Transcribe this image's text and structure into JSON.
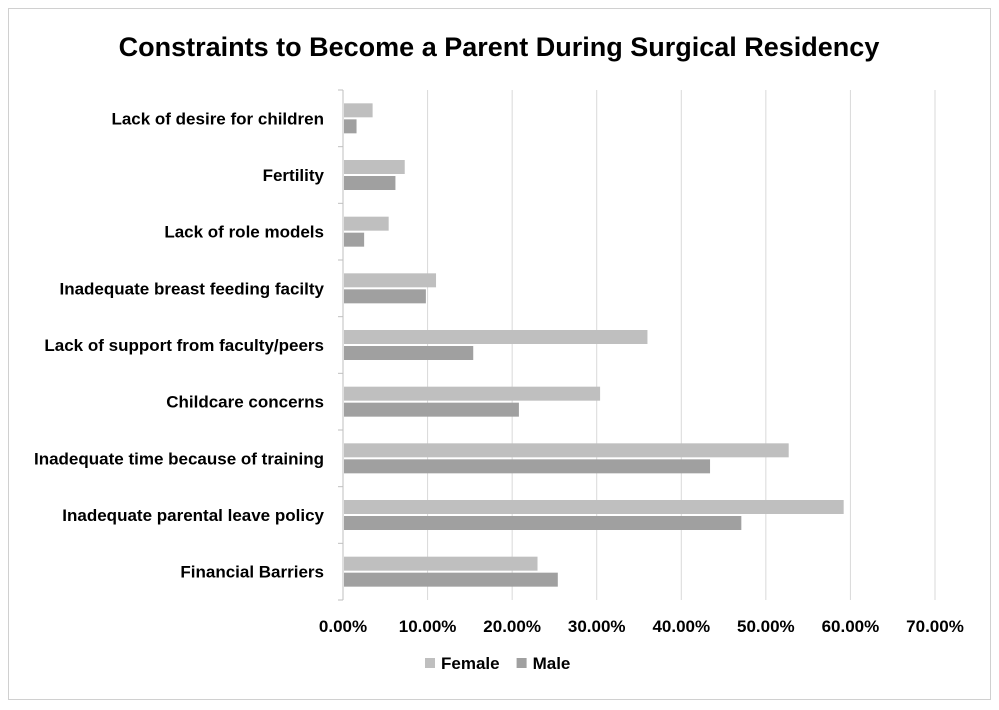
{
  "chart_data": {
    "type": "bar",
    "orientation": "horizontal",
    "title": "Constraints to Become a Parent During Surgical Residency",
    "xlabel": "",
    "ylabel": "",
    "categories": [
      "Lack of desire for children",
      "Fertility",
      "Lack of role models",
      "Inadequate breast feeding facilty",
      "Lack of support from faculty/peers",
      "Childcare concerns",
      "Inadequate time because of training",
      "Inadequate parental leave policy",
      "Financial Barriers"
    ],
    "series": [
      {
        "name": "Female",
        "color": "#bfbfbf",
        "values": [
          3.5,
          7.3,
          5.4,
          11.0,
          36.0,
          30.4,
          52.7,
          59.2,
          23.0
        ]
      },
      {
        "name": "Male",
        "color": "#a0a0a0",
        "values": [
          1.6,
          6.2,
          2.5,
          9.8,
          15.4,
          20.8,
          43.4,
          47.1,
          25.4
        ]
      }
    ],
    "xlim": [
      0,
      70
    ],
    "xticks": [
      0,
      10,
      20,
      30,
      40,
      50,
      60,
      70
    ],
    "xtick_labels": [
      "0.00%",
      "10.00%",
      "20.00%",
      "30.00%",
      "40.00%",
      "50.00%",
      "60.00%",
      "70.00%"
    ],
    "grid": "vertical",
    "legend_position": "bottom",
    "legend": [
      "Female",
      "Male"
    ]
  }
}
